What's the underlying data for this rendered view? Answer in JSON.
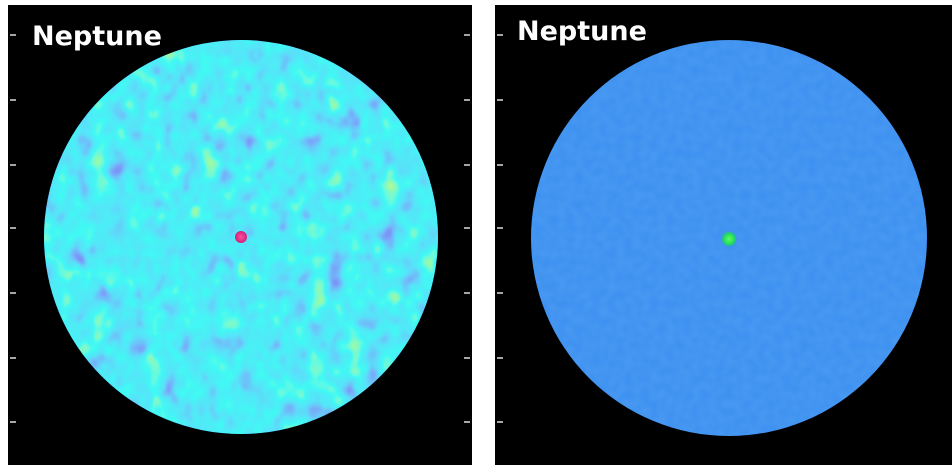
{
  "panels": [
    {
      "label": "Neptune"
    },
    {
      "label": "Neptune"
    }
  ]
}
